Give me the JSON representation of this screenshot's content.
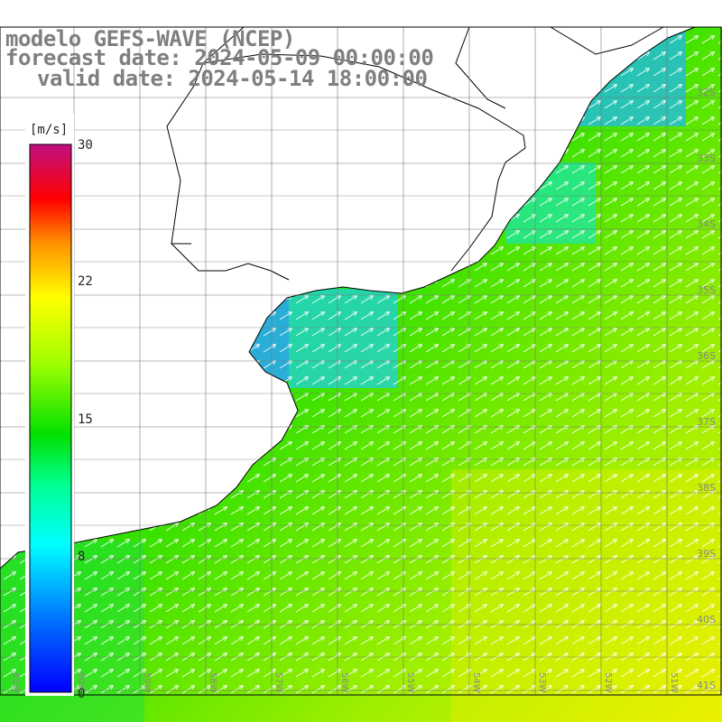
{
  "header": {
    "line1": "modelo GEFS-WAVE (NCEP)",
    "line2": "forecast date: 2024-05-09 00:00:00",
    "line3": "valid date: 2024-05-14 18:00:00"
  },
  "colorbar": {
    "unit": "[m/s]",
    "ticks": [
      "30",
      "22",
      "15",
      "8",
      "0"
    ],
    "tick_values": [
      30,
      22,
      15,
      8,
      0
    ],
    "colors": [
      "#0000ff",
      "#0090ff",
      "#00ffff",
      "#00ff80",
      "#00e000",
      "#a0ff00",
      "#ffff00",
      "#ff9000",
      "#ff0000",
      "#d01060",
      "#c01080"
    ]
  },
  "map": {
    "lon_labels": [
      "61W",
      "60W",
      "59W",
      "58W",
      "57W",
      "56W",
      "55W",
      "54W",
      "53W",
      "52W",
      "51W"
    ],
    "lat_labels": [
      "32S",
      "33S",
      "34S",
      "35S",
      "36S",
      "37S",
      "38S",
      "39S",
      "40S",
      "41S"
    ],
    "land_color": "#ffffff",
    "arrow_color": "#ffffff",
    "arrow_direction": "toward northeast"
  }
}
